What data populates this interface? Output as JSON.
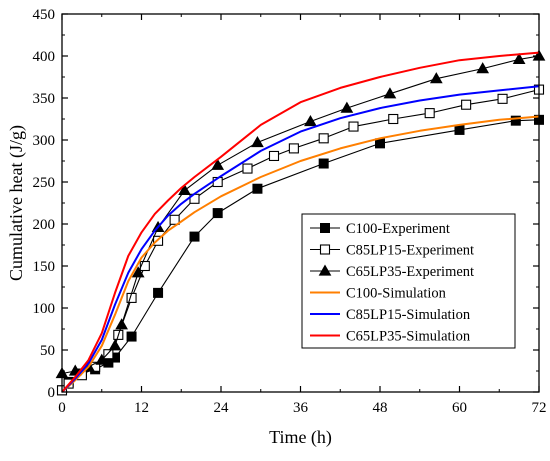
{
  "chart_data": {
    "type": "line",
    "title": "",
    "xlabel": "Time (h)",
    "ylabel": "Cumulative heat (J/g)",
    "xlim": [
      0,
      72
    ],
    "ylim": [
      0,
      450
    ],
    "xticks": [
      0,
      12,
      24,
      36,
      48,
      60,
      72
    ],
    "yticks": [
      0,
      50,
      100,
      150,
      200,
      250,
      300,
      350,
      400,
      450
    ],
    "grid": false,
    "legend_position": "bottom-right",
    "series": [
      {
        "name": "C100-Experiment",
        "style": "line-markers",
        "marker": "square-filled",
        "color": "#000000",
        "x": [
          0,
          1,
          3,
          5,
          7,
          8,
          10.5,
          14.5,
          20,
          23.5,
          29.5,
          39.5,
          48,
          60,
          68.5,
          72
        ],
        "y": [
          2,
          12,
          22,
          27,
          35,
          41,
          66,
          118,
          185,
          213,
          242,
          272,
          296,
          312,
          323,
          324
        ]
      },
      {
        "name": "C85LP15-Experiment",
        "style": "line-markers",
        "marker": "square-open",
        "color": "#000000",
        "x": [
          0,
          1,
          3,
          5,
          7,
          8.5,
          10.5,
          12.5,
          14.5,
          17,
          20,
          23.5,
          28,
          32,
          35,
          39.5,
          44,
          50,
          55.5,
          61,
          66.5,
          72
        ],
        "y": [
          2,
          10,
          20,
          30,
          45,
          68,
          112,
          150,
          180,
          205,
          230,
          250,
          266,
          281,
          290,
          302,
          316,
          325,
          332,
          342,
          349,
          360
        ]
      },
      {
        "name": "C65LP35-Experiment",
        "style": "line-markers",
        "marker": "triangle-filled",
        "color": "#000000",
        "x": [
          0,
          2,
          4,
          6,
          8,
          9,
          11.5,
          14.5,
          18.5,
          23.5,
          29.5,
          37.5,
          43,
          49.5,
          56.5,
          63.5,
          69,
          72
        ],
        "y": [
          22,
          25,
          30,
          38,
          55,
          80,
          142,
          196,
          240,
          270,
          297,
          322,
          338,
          355,
          373,
          385,
          396,
          400
        ]
      },
      {
        "name": "C100-Simulation",
        "style": "line",
        "color": "#ff7f00",
        "x": [
          0,
          2,
          4,
          6,
          8,
          10,
          12,
          14,
          16,
          18,
          20,
          24,
          30,
          36,
          42,
          48,
          54,
          60,
          66,
          72
        ],
        "y": [
          0,
          14,
          30,
          55,
          92,
          132,
          160,
          178,
          192,
          203,
          214,
          233,
          256,
          275,
          290,
          302,
          311,
          318,
          324,
          328
        ]
      },
      {
        "name": "C85LP15-Simulation",
        "style": "line",
        "color": "#0000ff",
        "x": [
          0,
          2,
          4,
          6,
          8,
          10,
          12,
          14,
          16,
          18,
          20,
          24,
          30,
          36,
          42,
          48,
          54,
          60,
          66,
          72
        ],
        "y": [
          0,
          16,
          34,
          62,
          104,
          142,
          170,
          192,
          210,
          224,
          236,
          257,
          287,
          310,
          326,
          338,
          347,
          354,
          359,
          364
        ]
      },
      {
        "name": "C65LP35-Simulation",
        "style": "line",
        "color": "#ff0000",
        "x": [
          0,
          2,
          4,
          6,
          8,
          10,
          12,
          14,
          16,
          18,
          20,
          24,
          30,
          36,
          42,
          48,
          54,
          60,
          66,
          72
        ],
        "y": [
          0,
          18,
          38,
          70,
          118,
          162,
          190,
          212,
          228,
          243,
          256,
          280,
          318,
          345,
          362,
          375,
          386,
          395,
          400,
          404
        ]
      }
    ]
  }
}
